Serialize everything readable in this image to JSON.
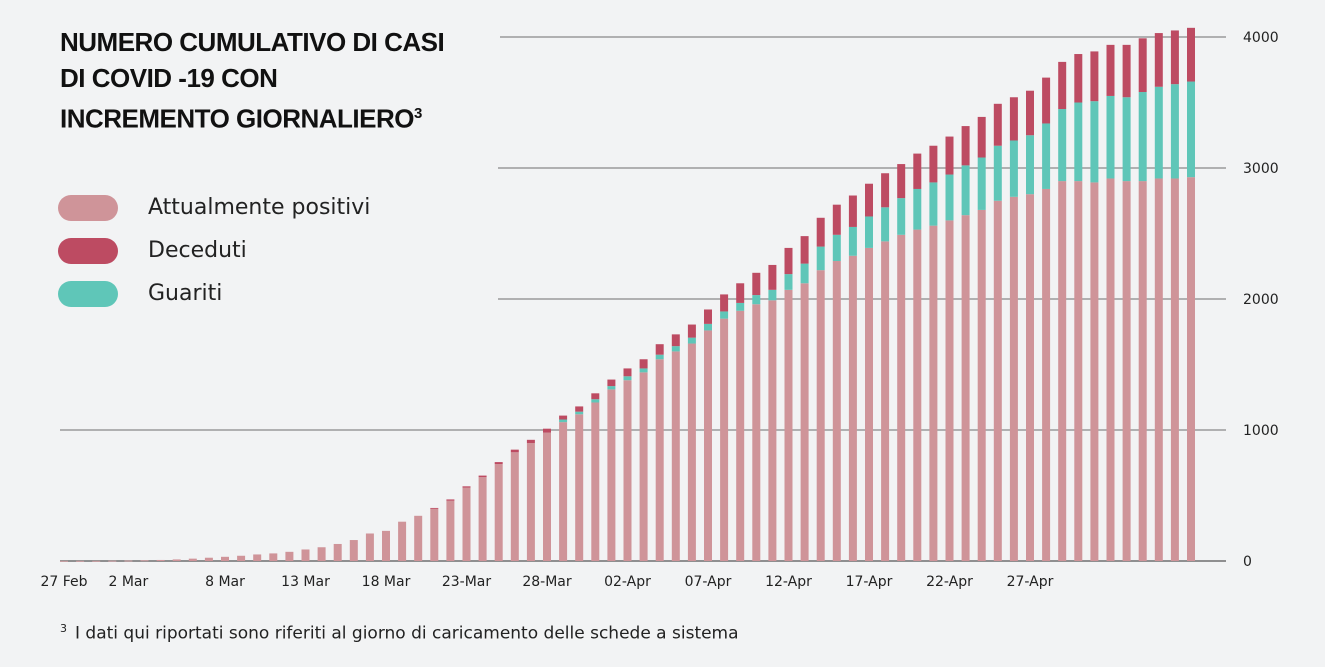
{
  "colors": {
    "attualmente_positivi": "#cf9499",
    "deceduti": "#bd4b62",
    "guariti": "#5fc6b8",
    "grid": "#6e6e6e",
    "background": "#f2f3f4"
  },
  "chart_data": {
    "type": "bar",
    "stacked": true,
    "title_line1": "NUMERO CUMULATIVO DI CASI",
    "title_line2": "DI COVID -19  CON",
    "title_line3": "INCREMENTO GIORNALIERO",
    "title_sup": "3",
    "xlabel": "",
    "ylabel": "",
    "ylim": [
      0,
      4000
    ],
    "yticks": [
      "0",
      "1000",
      "2000",
      "3000",
      "4000"
    ],
    "xticks": [
      "27 Feb",
      "2 Mar",
      "8 Mar",
      "13 Mar",
      "18 Mar",
      "23-Mar",
      "28-Mar",
      "02-Apr",
      "07-Apr",
      "12-Apr",
      "17-Apr",
      "22-Apr",
      "27-Apr"
    ],
    "legend_position": "left",
    "legend": [
      "Attualmente positivi",
      "Deceduti",
      "Guariti"
    ],
    "series": [
      {
        "name": "Attualmente positivi",
        "values": [
          1,
          1,
          1,
          2,
          3,
          5,
          8,
          12,
          18,
          25,
          32,
          40,
          50,
          58,
          70,
          88,
          105,
          130,
          160,
          210,
          230,
          300,
          345,
          400,
          460,
          560,
          640,
          740,
          830,
          900,
          980,
          1060,
          1120,
          1210,
          1310,
          1380,
          1440,
          1540,
          1600,
          1660,
          1760,
          1850,
          1910,
          1960,
          1990,
          2070,
          2120,
          2220,
          2290,
          2330,
          2390,
          2440,
          2490,
          2530,
          2560,
          2600,
          2640,
          2680,
          2750,
          2780,
          2800,
          2840,
          2900,
          2900,
          2890,
          2920,
          2900,
          2900,
          2920,
          2920,
          2930
        ]
      },
      {
        "name": "Deceduti",
        "values": [
          0,
          0,
          0,
          0,
          0,
          0,
          0,
          0,
          0,
          0,
          0,
          0,
          0,
          0,
          0,
          0,
          0,
          0,
          0,
          0,
          0,
          0,
          0,
          5,
          10,
          10,
          12,
          15,
          20,
          25,
          30,
          30,
          40,
          45,
          50,
          60,
          70,
          80,
          90,
          100,
          110,
          130,
          150,
          170,
          190,
          200,
          210,
          220,
          230,
          240,
          250,
          260,
          260,
          270,
          280,
          290,
          300,
          310,
          320,
          330,
          340,
          350,
          360,
          370,
          380,
          390,
          400,
          410,
          410,
          410,
          410
        ]
      },
      {
        "name": "Guariti",
        "values": [
          0,
          0,
          0,
          0,
          0,
          0,
          0,
          0,
          0,
          0,
          0,
          0,
          0,
          0,
          0,
          0,
          0,
          0,
          0,
          0,
          0,
          0,
          0,
          0,
          0,
          0,
          0,
          0,
          0,
          0,
          0,
          20,
          20,
          25,
          25,
          30,
          30,
          35,
          40,
          45,
          50,
          55,
          60,
          70,
          80,
          120,
          150,
          180,
          200,
          220,
          240,
          260,
          280,
          310,
          330,
          350,
          380,
          400,
          420,
          430,
          450,
          500,
          550,
          600,
          620,
          630,
          640,
          680,
          700,
          720,
          730
        ]
      }
    ]
  },
  "footnote": {
    "marker": "3",
    "text": "I dati qui riportati sono riferiti al giorno di caricamento delle schede a sistema"
  }
}
